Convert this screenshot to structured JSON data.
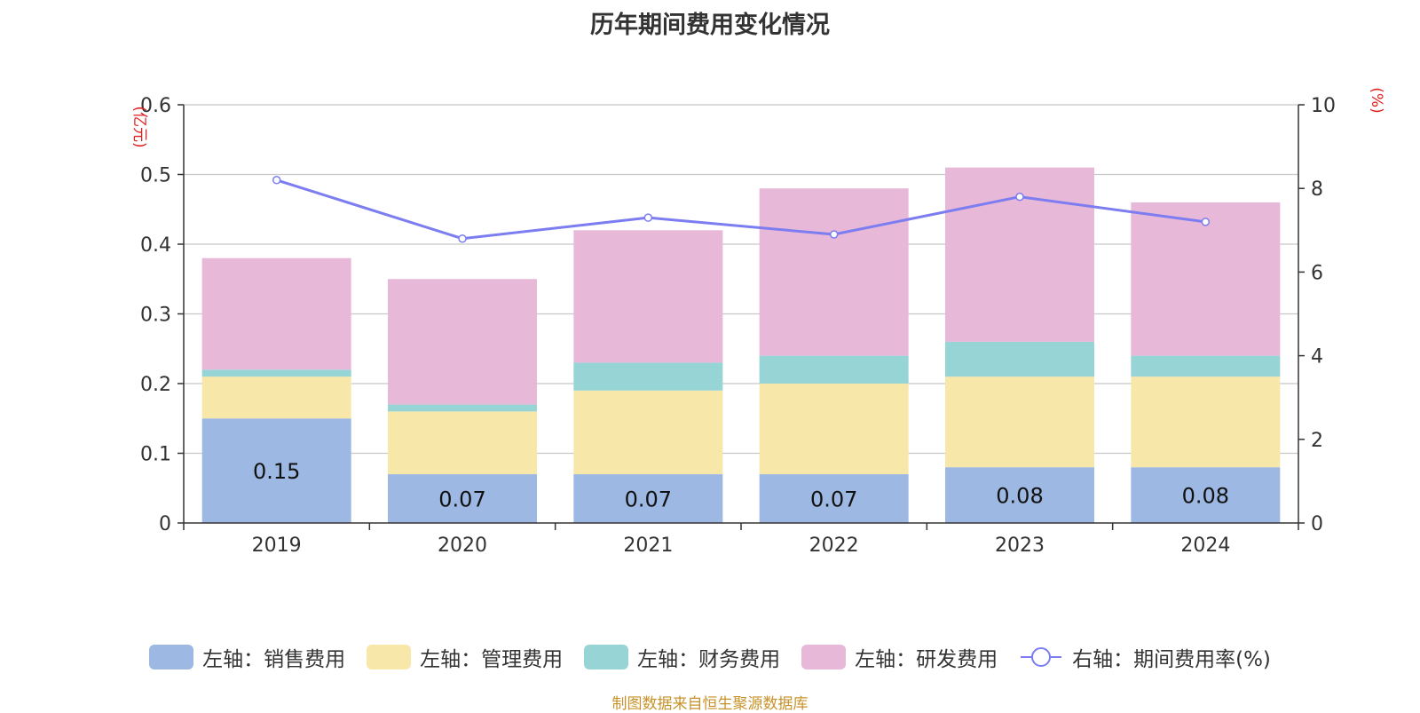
{
  "chart_data": {
    "type": "bar",
    "title": "历年期间费用变化情况",
    "categories": [
      "2019",
      "2020",
      "2021",
      "2022",
      "2023",
      "2024"
    ],
    "stacked": true,
    "series": [
      {
        "name": "左轴：销售费用",
        "axis": "left",
        "color": "#9db8e2",
        "values": [
          0.15,
          0.07,
          0.07,
          0.07,
          0.08,
          0.08
        ],
        "labels": [
          "0.15",
          "0.07",
          "0.07",
          "0.07",
          "0.08",
          "0.08"
        ]
      },
      {
        "name": "左轴：管理费用",
        "axis": "left",
        "color": "#f7e7a8",
        "values": [
          0.06,
          0.09,
          0.12,
          0.13,
          0.13,
          0.13
        ]
      },
      {
        "name": "左轴：财务费用",
        "axis": "left",
        "color": "#97d4d6",
        "values": [
          0.01,
          0.01,
          0.04,
          0.04,
          0.05,
          0.03
        ]
      },
      {
        "name": "左轴：研发费用",
        "axis": "left",
        "color": "#e7b8d8",
        "values": [
          0.16,
          0.18,
          0.19,
          0.24,
          0.25,
          0.22
        ]
      }
    ],
    "line": {
      "name": "右轴：期间费用率(%)",
      "axis": "right",
      "color": "#7b7df0",
      "values": [
        8.2,
        6.8,
        7.3,
        6.9,
        7.8,
        7.2
      ]
    },
    "left_axis": {
      "unit": "(亿元)",
      "ylim": [
        0,
        0.6
      ],
      "ticks": [
        "0",
        "0.1",
        "0.2",
        "0.3",
        "0.4",
        "0.5",
        "0.6"
      ]
    },
    "right_axis": {
      "unit": "(%)",
      "ylim": [
        0,
        10
      ],
      "ticks": [
        "0",
        "2",
        "4",
        "6",
        "8",
        "10"
      ]
    },
    "grid": true,
    "legend_position": "bottom"
  },
  "source_text": "制图数据来自恒生聚源数据库"
}
